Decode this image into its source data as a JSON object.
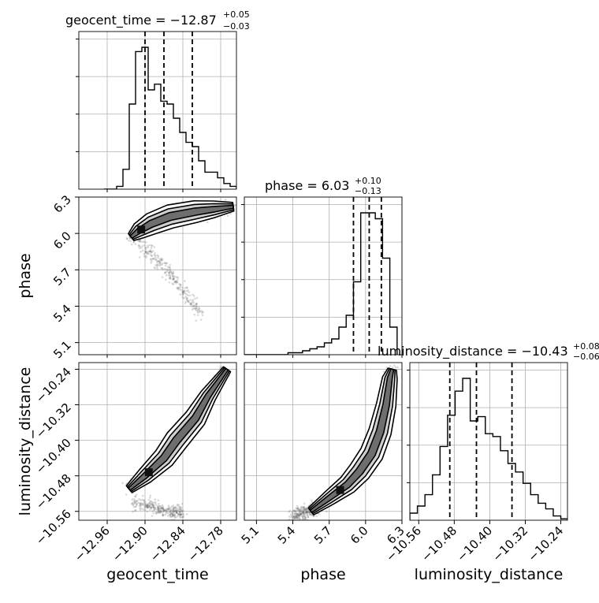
{
  "chart_data": {
    "type": "corner",
    "parameters": [
      {
        "name": "geocent_time",
        "label": "geocent_time",
        "title": {
          "prefix": "geocent_time = ",
          "median": "−12.87",
          "plus": "+0.05",
          "minus": "−0.03"
        },
        "range": [
          -13.005,
          -12.755
        ],
        "ticks": [
          -12.96,
          -12.9,
          -12.84,
          -12.78
        ],
        "tick_labels": [
          "−12.96",
          "−12.90",
          "−12.84",
          "−12.78"
        ],
        "quantiles": [
          -12.9,
          -12.87,
          -12.825
        ],
        "hist_bin_edges": [
          -12.965,
          -12.955,
          -12.945,
          -12.935,
          -12.925,
          -12.915,
          -12.905,
          -12.895,
          -12.885,
          -12.875,
          -12.865,
          -12.855,
          -12.845,
          -12.835,
          -12.825,
          -12.815,
          -12.805,
          -12.795,
          -12.785,
          -12.775,
          -12.765,
          -12.755
        ],
        "hist_counts": [
          0,
          0,
          2,
          14,
          60,
          97,
          100,
          70,
          74,
          62,
          60,
          50,
          40,
          33,
          30,
          20,
          12,
          12,
          8,
          4,
          2
        ]
      },
      {
        "name": "phase",
        "label": "phase",
        "title": {
          "prefix": "phase = ",
          "median": "6.03",
          "plus": "+0.10",
          "minus": "−0.13"
        },
        "range": [
          5.0,
          6.3
        ],
        "ticks": [
          5.1,
          5.4,
          5.7,
          6.0,
          6.3
        ],
        "tick_labels": [
          "5.1",
          "5.4",
          "5.7",
          "6.0",
          "6.3"
        ],
        "quantiles": [
          5.9,
          6.03,
          6.13
        ],
        "hist_bin_edges": [
          5.0,
          5.06,
          5.12,
          5.18,
          5.24,
          5.3,
          5.36,
          5.42,
          5.48,
          5.54,
          5.6,
          5.66,
          5.72,
          5.78,
          5.84,
          5.9,
          5.96,
          6.02,
          6.08,
          6.14,
          6.2,
          6.26
        ],
        "hist_counts": [
          0,
          0,
          0,
          0,
          0,
          0,
          1,
          1,
          2,
          3,
          4,
          6,
          8,
          14,
          20,
          37,
          72,
          72,
          69,
          49,
          14
        ]
      },
      {
        "name": "luminosity_distance",
        "label": "luminosity_distance",
        "title": {
          "prefix": "luminosity_distance = ",
          "median": "−10.43",
          "plus": "+0.08",
          "minus": "−0.06"
        },
        "range": [
          -10.58,
          -10.225
        ],
        "ticks": [
          -10.56,
          -10.48,
          -10.4,
          -10.32,
          -10.24
        ],
        "tick_labels": [
          "−10.56",
          "−10.48",
          "−10.40",
          "−10.32",
          "−10.24"
        ],
        "quantiles": [
          -10.49,
          -10.43,
          -10.35
        ],
        "hist_bin_edges": [
          -10.58,
          -10.563,
          -10.546,
          -10.529,
          -10.512,
          -10.495,
          -10.478,
          -10.461,
          -10.444,
          -10.427,
          -10.41,
          -10.393,
          -10.376,
          -10.359,
          -10.342,
          -10.325,
          -10.308,
          -10.291,
          -10.274,
          -10.257,
          -10.24,
          -10.225
        ],
        "hist_counts": [
          5,
          10,
          18,
          32,
          52,
          74,
          91,
          100,
          70,
          73,
          61,
          59,
          49,
          40,
          34,
          26,
          18,
          12,
          8,
          3,
          1
        ]
      }
    ],
    "pairs": [
      {
        "x": "geocent_time",
        "y": "phase",
        "ridge": [
          [
            -12.922,
            5.97
          ],
          [
            -12.91,
            6.02
          ],
          [
            -12.89,
            6.08
          ],
          [
            -12.86,
            6.14
          ],
          [
            -12.82,
            6.18
          ],
          [
            -12.79,
            6.2
          ],
          [
            -12.76,
            6.22
          ]
        ],
        "tail": [
          [
            -12.91,
            5.92
          ],
          [
            -12.89,
            5.83
          ],
          [
            -12.87,
            5.72
          ],
          [
            -12.85,
            5.6
          ],
          [
            -12.83,
            5.45
          ],
          [
            -12.81,
            5.3
          ]
        ]
      },
      {
        "x": "geocent_time",
        "y": "luminosity_distance",
        "ridge": [
          [
            -12.925,
            -10.51
          ],
          [
            -12.9,
            -10.48
          ],
          [
            -12.87,
            -10.44
          ],
          [
            -12.85,
            -10.4
          ],
          [
            -12.82,
            -10.35
          ],
          [
            -12.8,
            -10.3
          ],
          [
            -12.77,
            -10.24
          ]
        ],
        "tail": [
          [
            -12.92,
            -10.54
          ],
          [
            -12.89,
            -10.55
          ],
          [
            -12.86,
            -10.56
          ],
          [
            -12.84,
            -10.565
          ]
        ]
      },
      {
        "x": "phase",
        "y": "luminosity_distance",
        "ridge": [
          [
            5.55,
            -10.56
          ],
          [
            5.7,
            -10.53
          ],
          [
            5.85,
            -10.5
          ],
          [
            5.95,
            -10.47
          ],
          [
            6.05,
            -10.43
          ],
          [
            6.12,
            -10.38
          ],
          [
            6.17,
            -10.32
          ],
          [
            6.2,
            -10.26
          ],
          [
            6.22,
            -10.24
          ]
        ],
        "tail": [
          [
            5.4,
            -10.57
          ],
          [
            5.5,
            -10.565
          ],
          [
            5.6,
            -10.55
          ]
        ]
      }
    ]
  }
}
